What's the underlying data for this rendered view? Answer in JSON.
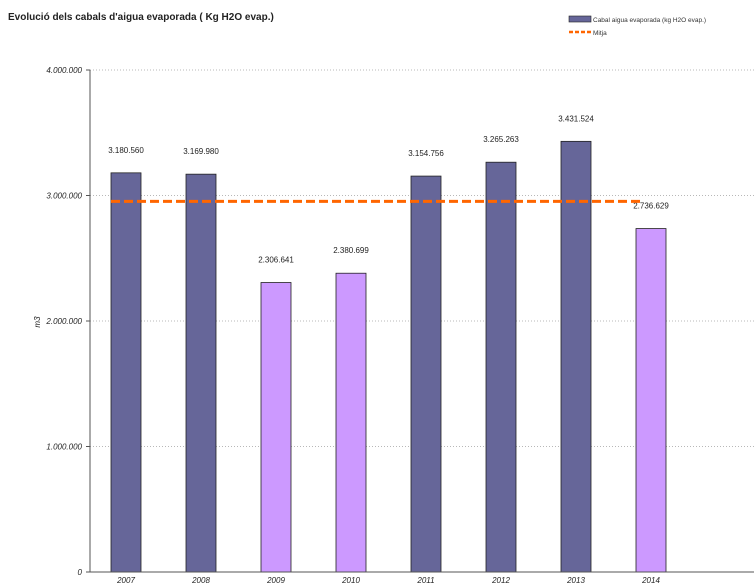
{
  "chart_data": {
    "type": "bar",
    "title": "Evolució dels cabals d'aigua evaporada ( Kg H2O evap.)",
    "ylabel": "m3",
    "xlabel": "",
    "ylim": [
      0,
      4000000
    ],
    "yticks": [
      0,
      1000000,
      2000000,
      3000000,
      4000000
    ],
    "ytick_labels": [
      "0",
      "1.000.000",
      "2.000.000",
      "3.000.000",
      "4.000.000"
    ],
    "categories": [
      "2007",
      "2008",
      "2009",
      "2010",
      "2011",
      "2012",
      "2013",
      "2014"
    ],
    "values": [
      3180560,
      3169980,
      2306641,
      2380699,
      3154756,
      3265263,
      3431524,
      2736629
    ],
    "value_labels": [
      "3.180.560",
      "3.169.980",
      "2.306.641",
      "2.380.699",
      "3.154.756",
      "3.265.263",
      "3.431.524",
      "2.736.629"
    ],
    "bar_colors": [
      "#666699",
      "#666699",
      "#cc99ff",
      "#cc99ff",
      "#666699",
      "#666699",
      "#666699",
      "#cc99ff"
    ],
    "mean_value": 2953257,
    "mean_color": "#ff6600",
    "grid": true,
    "legend_position": "top-right",
    "legend": {
      "series_label": "Cabal aigua evaporada (kg H2O evap.)",
      "mean_label": "Mitja"
    }
  }
}
